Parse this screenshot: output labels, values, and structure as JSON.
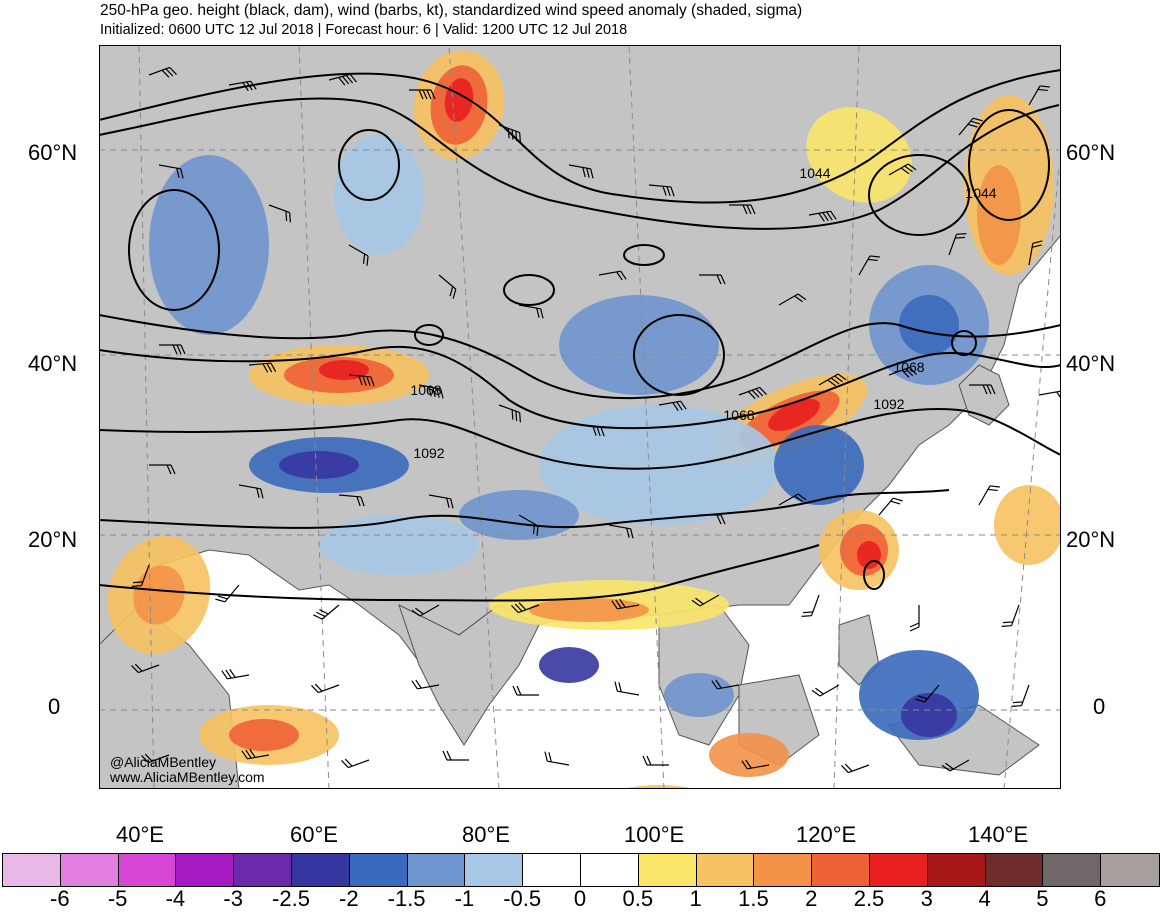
{
  "header": {
    "title": "250-hPa geo. height (black, dam), wind (barbs, kt), standardized wind speed anomaly (shaded, sigma)",
    "subtitle": "Initialized: 0600 UTC 12 Jul 2018 | Forecast hour: 6 | Valid: 1200 UTC 12 Jul 2018"
  },
  "map": {
    "lat_labels": [
      "60°N",
      "40°N",
      "20°N",
      "0"
    ],
    "lon_labels": [
      "40°E",
      "60°E",
      "80°E",
      "100°E",
      "120°E",
      "140°E"
    ],
    "contour_labels": [
      "1044",
      "1044",
      "1068",
      "1068",
      "1068",
      "1092",
      "1092"
    ],
    "colors": {
      "land": "#c4c4c4",
      "ocean": "#ffffff",
      "contour": "#000000",
      "grid": "#8a8a8a"
    }
  },
  "credit": {
    "handle": "@AliciaMBentley",
    "website": "www.AliciaMBentley.com"
  },
  "colorbar": {
    "ticks": [
      "-6",
      "-5",
      "-4",
      "-3",
      "-2.5",
      "-2",
      "-1.5",
      "-1",
      "-0.5",
      "0",
      "0.5",
      "1",
      "1.5",
      "2",
      "2.5",
      "3",
      "4",
      "5",
      "6"
    ],
    "colors": [
      "#e8b8e6",
      "#e37fe0",
      "#d846d8",
      "#a81ac4",
      "#6a2aaa",
      "#3636a0",
      "#3a6abd",
      "#6f95cf",
      "#a6c8e6",
      "#ffffff",
      "#ffffff",
      "#fbe66a",
      "#f7c262",
      "#f39248",
      "#ef6236",
      "#e82020",
      "#a81818",
      "#6e2c2c",
      "#706868",
      "#a89f9f"
    ]
  }
}
